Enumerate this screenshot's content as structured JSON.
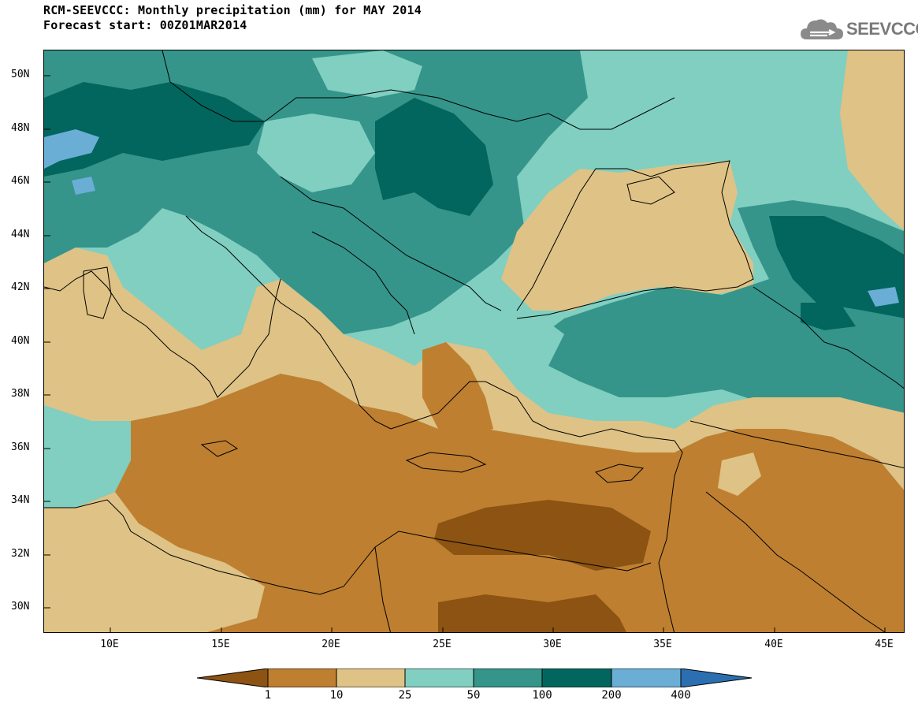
{
  "title": "RCM-SEEVCCC: Monthly precipitation (mm) for MAY 2014",
  "subtitle": "Forecast start: 00Z01MAR2014",
  "logo": {
    "text": "SEEVCCC",
    "icon": "cloud-logo-icon"
  },
  "map": {
    "lat_labels": [
      "50N",
      "48N",
      "46N",
      "44N",
      "42N",
      "40N",
      "38N",
      "36N",
      "34N",
      "32N",
      "30N"
    ],
    "lon_labels": [
      "10E",
      "15E",
      "20E",
      "25E",
      "30E",
      "35E",
      "40E",
      "45E"
    ],
    "region": "South-Eastern Europe, Mediterranean, Black Sea, North Africa, Middle East"
  },
  "colorbar": {
    "levels": [
      "1",
      "10",
      "25",
      "50",
      "100",
      "200",
      "400"
    ],
    "colors": [
      "#8c5312",
      "#be7f30",
      "#dfc285",
      "#80cfc1",
      "#35958a",
      "#02665e",
      "#6aaed6",
      "#2b6fb0"
    ]
  }
}
